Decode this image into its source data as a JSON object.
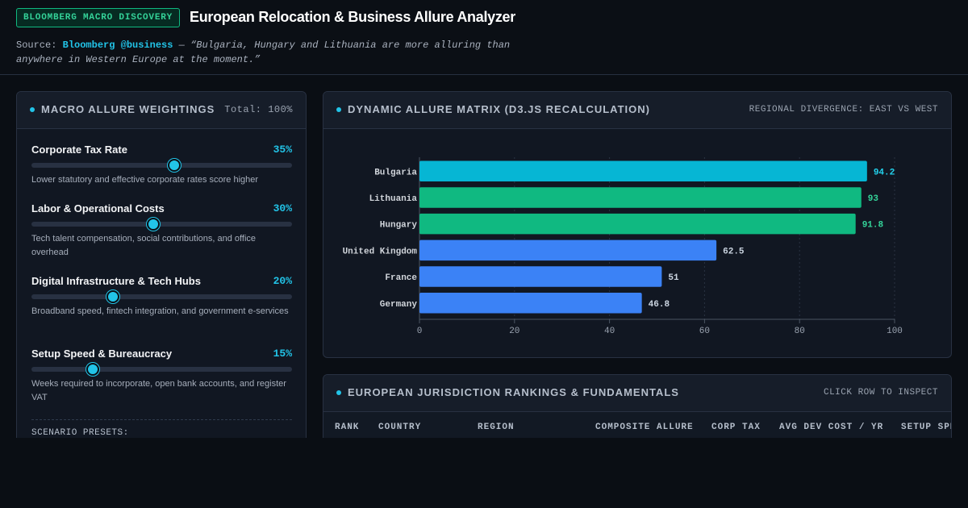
{
  "header": {
    "badge": "BLOOMBERG MACRO DISCOVERY",
    "title": "European Relocation & Business Allure Analyzer",
    "source_label": "Source:",
    "source_handle": "Bloomberg @business",
    "source_quote": " — “Bulgaria, Hungary and Lithuania are more alluring than anywhere in Western Europe at the moment.”"
  },
  "weights": {
    "title": "MACRO ALLURE WEIGHTINGS",
    "total": "Total: 100%",
    "items": [
      {
        "label": "Corporate Tax Rate",
        "pct_label": "35%",
        "value": 35,
        "desc": "Lower statutory and effective corporate rates score higher"
      },
      {
        "label": "Labor & Operational Costs",
        "pct_label": "30%",
        "value": 30,
        "desc": "Tech talent compensation, social contributions, and office overhead"
      },
      {
        "label": "Digital Infrastructure & Tech Hubs",
        "pct_label": "20%",
        "value": 20,
        "desc": "Broadband speed, fintech integration, and government e-services"
      },
      {
        "label": "Setup Speed & Bureaucracy",
        "pct_label": "15%",
        "value": 15,
        "desc": "Weeks required to incorporate, open bank accounts, and register VAT"
      }
    ],
    "presets_label": "SCENARIO PRESETS:"
  },
  "matrix": {
    "title": "DYNAMIC ALLURE MATRIX (D3.JS RECALCULATION)",
    "meta": "REGIONAL DIVERGENCE: EAST VS WEST"
  },
  "chart_data": {
    "type": "bar",
    "orientation": "horizontal",
    "categories": [
      "Bulgaria",
      "Lithuania",
      "Hungary",
      "United Kingdom",
      "France",
      "Germany"
    ],
    "values": [
      94.2,
      93,
      91.8,
      62.5,
      51,
      46.8
    ],
    "bar_colors": [
      "#06b6d4",
      "#10b981",
      "#10b981",
      "#3b82f6",
      "#3b82f6",
      "#3b82f6"
    ],
    "label_colors": [
      "#22d3ee",
      "#34d399",
      "#34d399",
      "#cbd5e1",
      "#cbd5e1",
      "#cbd5e1"
    ],
    "xlim": [
      0,
      100
    ],
    "xticks": [
      0,
      20,
      40,
      60,
      80,
      100
    ],
    "grid": true
  },
  "rankings": {
    "title": "EUROPEAN JURISDICTION RANKINGS & FUNDAMENTALS",
    "meta": "CLICK ROW TO INSPECT",
    "columns": [
      "RANK",
      "COUNTRY",
      "REGION",
      "COMPOSITE ALLURE",
      "CORP TAX",
      "AVG DEV COST / YR",
      "SETUP SPE"
    ]
  },
  "colors": {
    "accent": "#22c4e8",
    "east": "#10b981",
    "west": "#3b82f6",
    "leader": "#06b6d4"
  }
}
